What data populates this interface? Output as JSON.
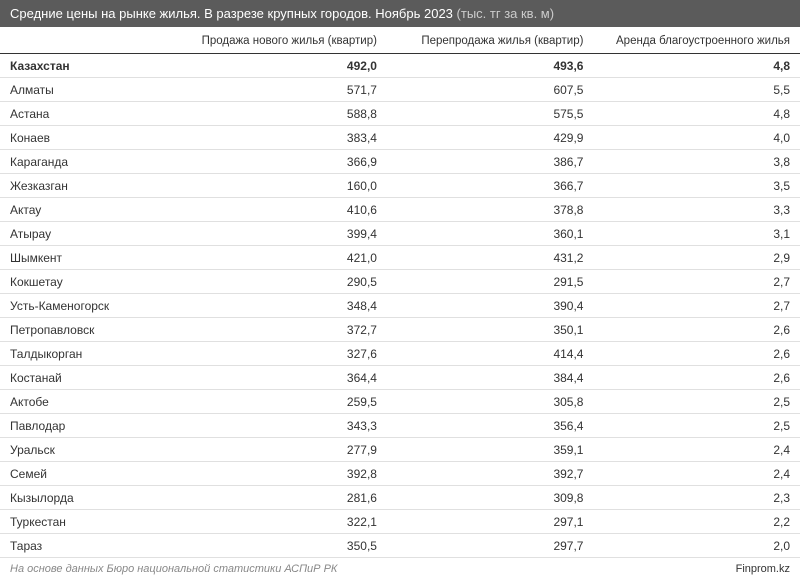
{
  "header": {
    "title": "Средние цены на рынке жилья. В разрезе крупных городов. Ноябрь 2023",
    "subtitle": "(тыс. тг за кв. м)"
  },
  "table": {
    "columns": [
      "",
      "Продажа нового жилья (квартир)",
      "Перепродажа жилья (квартир)",
      "Аренда благоустроенного жилья"
    ],
    "rows": [
      {
        "city": "Казахстан",
        "new_sale": "492,0",
        "resale": "493,6",
        "rent": "4,8",
        "bold": true
      },
      {
        "city": "Алматы",
        "new_sale": "571,7",
        "resale": "607,5",
        "rent": "5,5",
        "bold": false
      },
      {
        "city": "Астана",
        "new_sale": "588,8",
        "resale": "575,5",
        "rent": "4,8",
        "bold": false
      },
      {
        "city": "Конаев",
        "new_sale": "383,4",
        "resale": "429,9",
        "rent": "4,0",
        "bold": false
      },
      {
        "city": "Караганда",
        "new_sale": "366,9",
        "resale": "386,7",
        "rent": "3,8",
        "bold": false
      },
      {
        "city": "Жезказган",
        "new_sale": "160,0",
        "resale": "366,7",
        "rent": "3,5",
        "bold": false
      },
      {
        "city": "Актау",
        "new_sale": "410,6",
        "resale": "378,8",
        "rent": "3,3",
        "bold": false
      },
      {
        "city": "Атырау",
        "new_sale": "399,4",
        "resale": "360,1",
        "rent": "3,1",
        "bold": false
      },
      {
        "city": "Шымкент",
        "new_sale": "421,0",
        "resale": "431,2",
        "rent": "2,9",
        "bold": false
      },
      {
        "city": "Кокшетау",
        "new_sale": "290,5",
        "resale": "291,5",
        "rent": "2,7",
        "bold": false
      },
      {
        "city": "Усть-Каменогорск",
        "new_sale": "348,4",
        "resale": "390,4",
        "rent": "2,7",
        "bold": false
      },
      {
        "city": "Петропавловск",
        "new_sale": "372,7",
        "resale": "350,1",
        "rent": "2,6",
        "bold": false
      },
      {
        "city": "Талдыкорган",
        "new_sale": "327,6",
        "resale": "414,4",
        "rent": "2,6",
        "bold": false
      },
      {
        "city": "Костанай",
        "new_sale": "364,4",
        "resale": "384,4",
        "rent": "2,6",
        "bold": false
      },
      {
        "city": "Актобе",
        "new_sale": "259,5",
        "resale": "305,8",
        "rent": "2,5",
        "bold": false
      },
      {
        "city": "Павлодар",
        "new_sale": "343,3",
        "resale": "356,4",
        "rent": "2,5",
        "bold": false
      },
      {
        "city": "Уральск",
        "new_sale": "277,9",
        "resale": "359,1",
        "rent": "2,4",
        "bold": false
      },
      {
        "city": "Семей",
        "new_sale": "392,8",
        "resale": "392,7",
        "rent": "2,4",
        "bold": false
      },
      {
        "city": "Кызылорда",
        "new_sale": "281,6",
        "resale": "309,8",
        "rent": "2,3",
        "bold": false
      },
      {
        "city": "Туркестан",
        "new_sale": "322,1",
        "resale": "297,1",
        "rent": "2,2",
        "bold": false
      },
      {
        "city": "Тараз",
        "new_sale": "350,5",
        "resale": "297,7",
        "rent": "2,0",
        "bold": false
      }
    ]
  },
  "footer": {
    "source": "На основе данных Бюро национальной статистики АСПиР РК",
    "brand": "Finprom.kz"
  },
  "styling": {
    "header_bg": "#5b5b5b",
    "header_text_color": "#ffffff",
    "subtitle_color": "#cccccc",
    "body_bg": "#ffffff",
    "row_border_color": "#e0e0e0",
    "header_border_color": "#333333",
    "text_color": "#333333",
    "footer_source_color": "#888888",
    "title_fontsize": 13,
    "body_fontsize": 12,
    "footer_fontsize": 11
  }
}
